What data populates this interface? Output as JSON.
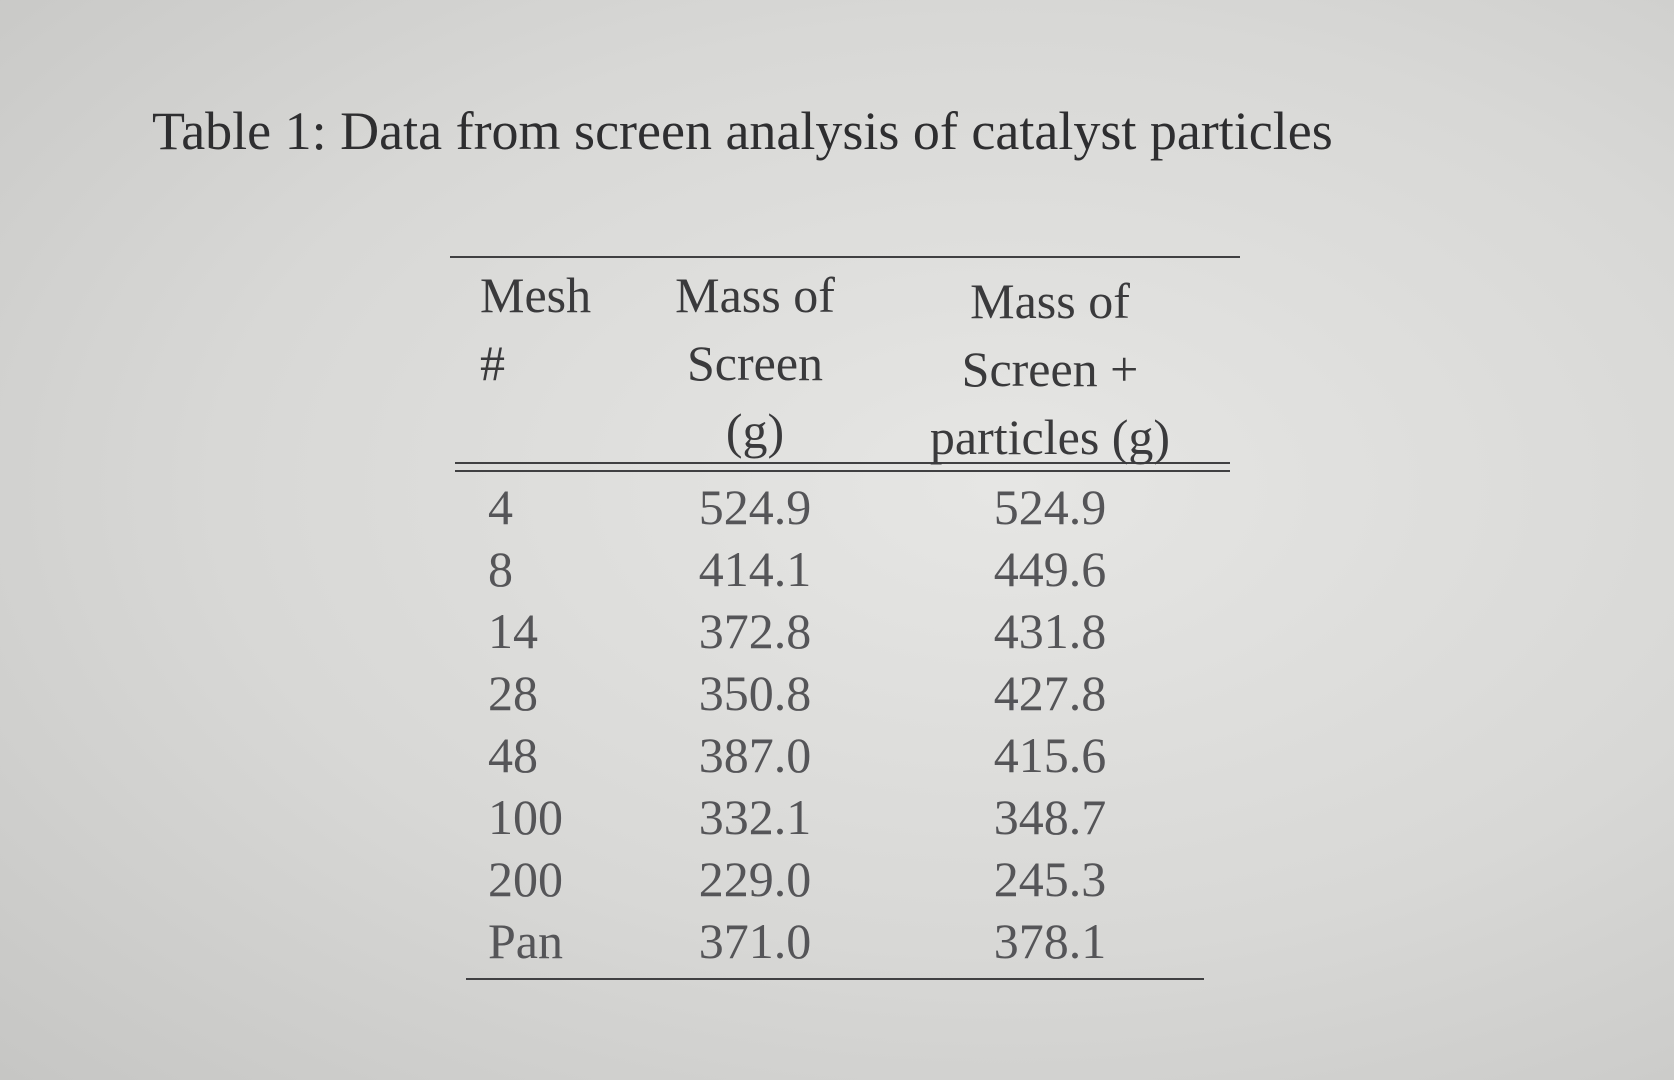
{
  "caption": "Table 1: Data from screen analysis of catalyst particles",
  "table": {
    "header": [
      [
        "Mesh",
        "#"
      ],
      [
        "Mass of",
        "Screen",
        "(g)"
      ],
      [
        "Mass of",
        "Screen +",
        "particles (g)"
      ]
    ],
    "rows": [
      [
        "4",
        "524.9",
        "524.9"
      ],
      [
        "8",
        "414.1",
        "449.6"
      ],
      [
        "14",
        "372.8",
        "431.8"
      ],
      [
        "28",
        "350.8",
        "427.8"
      ],
      [
        "48",
        "387.0",
        "415.6"
      ],
      [
        "100",
        "332.1",
        "348.7"
      ],
      [
        "200",
        "229.0",
        "245.3"
      ],
      [
        "Pan",
        "371.0",
        "378.1"
      ]
    ]
  }
}
